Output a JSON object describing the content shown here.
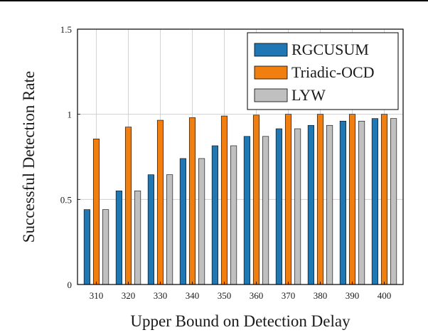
{
  "chart_data": {
    "type": "bar",
    "title": "",
    "xlabel": "Upper Bound on Detection Delay",
    "ylabel": "Successful Detection Rate",
    "categories": [
      "310",
      "320",
      "330",
      "340",
      "350",
      "360",
      "370",
      "380",
      "390",
      "400"
    ],
    "ylim": [
      0,
      1.5
    ],
    "yticks": [
      "0",
      "0.5",
      "1",
      "1.5"
    ],
    "yticks_values": [
      0,
      0.5,
      1,
      1.5
    ],
    "grid": true,
    "legend_position": "top-right",
    "series": [
      {
        "name": "RGCUSUM",
        "color": "#1f77b4",
        "values": [
          0.44,
          0.55,
          0.645,
          0.74,
          0.815,
          0.87,
          0.915,
          0.935,
          0.96,
          0.975
        ]
      },
      {
        "name": "Triadic-OCD",
        "color": "#f07f0f",
        "values": [
          0.855,
          0.925,
          0.965,
          0.98,
          0.99,
          0.995,
          1.0,
          1.0,
          1.0,
          1.0
        ]
      },
      {
        "name": "LYW",
        "color": "#c0c0c0",
        "values": [
          0.44,
          0.55,
          0.645,
          0.74,
          0.815,
          0.87,
          0.915,
          0.935,
          0.96,
          0.975
        ]
      }
    ]
  }
}
